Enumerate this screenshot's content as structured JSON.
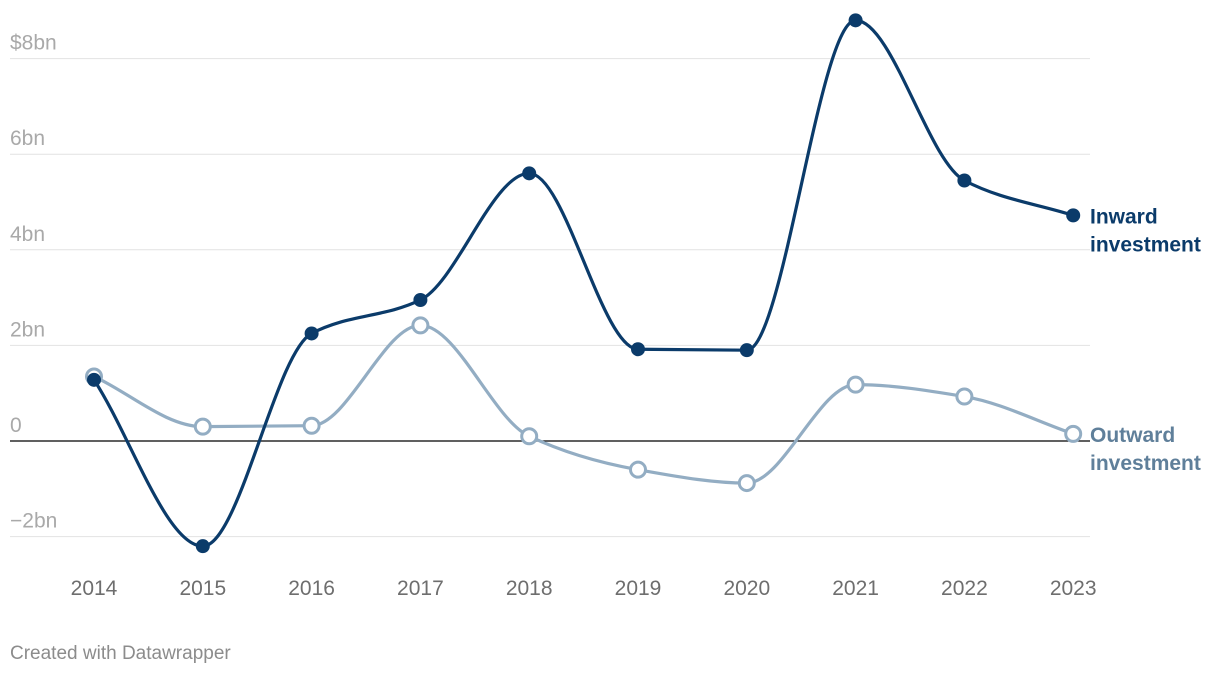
{
  "chart_data": {
    "type": "line",
    "x": [
      "2014",
      "2015",
      "2016",
      "2017",
      "2018",
      "2019",
      "2020",
      "2021",
      "2022",
      "2023"
    ],
    "y_ticks": [
      {
        "value": -2,
        "label": "−2bn"
      },
      {
        "value": 0,
        "label": "0"
      },
      {
        "value": 2,
        "label": "2bn"
      },
      {
        "value": 4,
        "label": "4bn"
      },
      {
        "value": 6,
        "label": "6bn"
      },
      {
        "value": 8,
        "label": "$8bn"
      }
    ],
    "ylim": [
      -2.6,
      8.8
    ],
    "grid": true,
    "legend": "direct labels at line ends (right)",
    "series": [
      {
        "name_lines": [
          "Inward",
          "investment"
        ],
        "color": "#0b3b6a",
        "marker": "filled",
        "values": [
          1.28,
          -2.2,
          2.25,
          2.95,
          5.6,
          1.92,
          1.9,
          8.8,
          5.45,
          4.72
        ]
      },
      {
        "name_lines": [
          "Outward",
          "investment"
        ],
        "color": "#93adc3",
        "label_color": "#5f7f9a",
        "marker": "hollow",
        "values": [
          1.35,
          0.3,
          0.32,
          2.42,
          0.1,
          -0.6,
          -0.88,
          1.18,
          0.93,
          0.15
        ]
      }
    ]
  },
  "footer": {
    "credit": "Created with Datawrapper"
  }
}
